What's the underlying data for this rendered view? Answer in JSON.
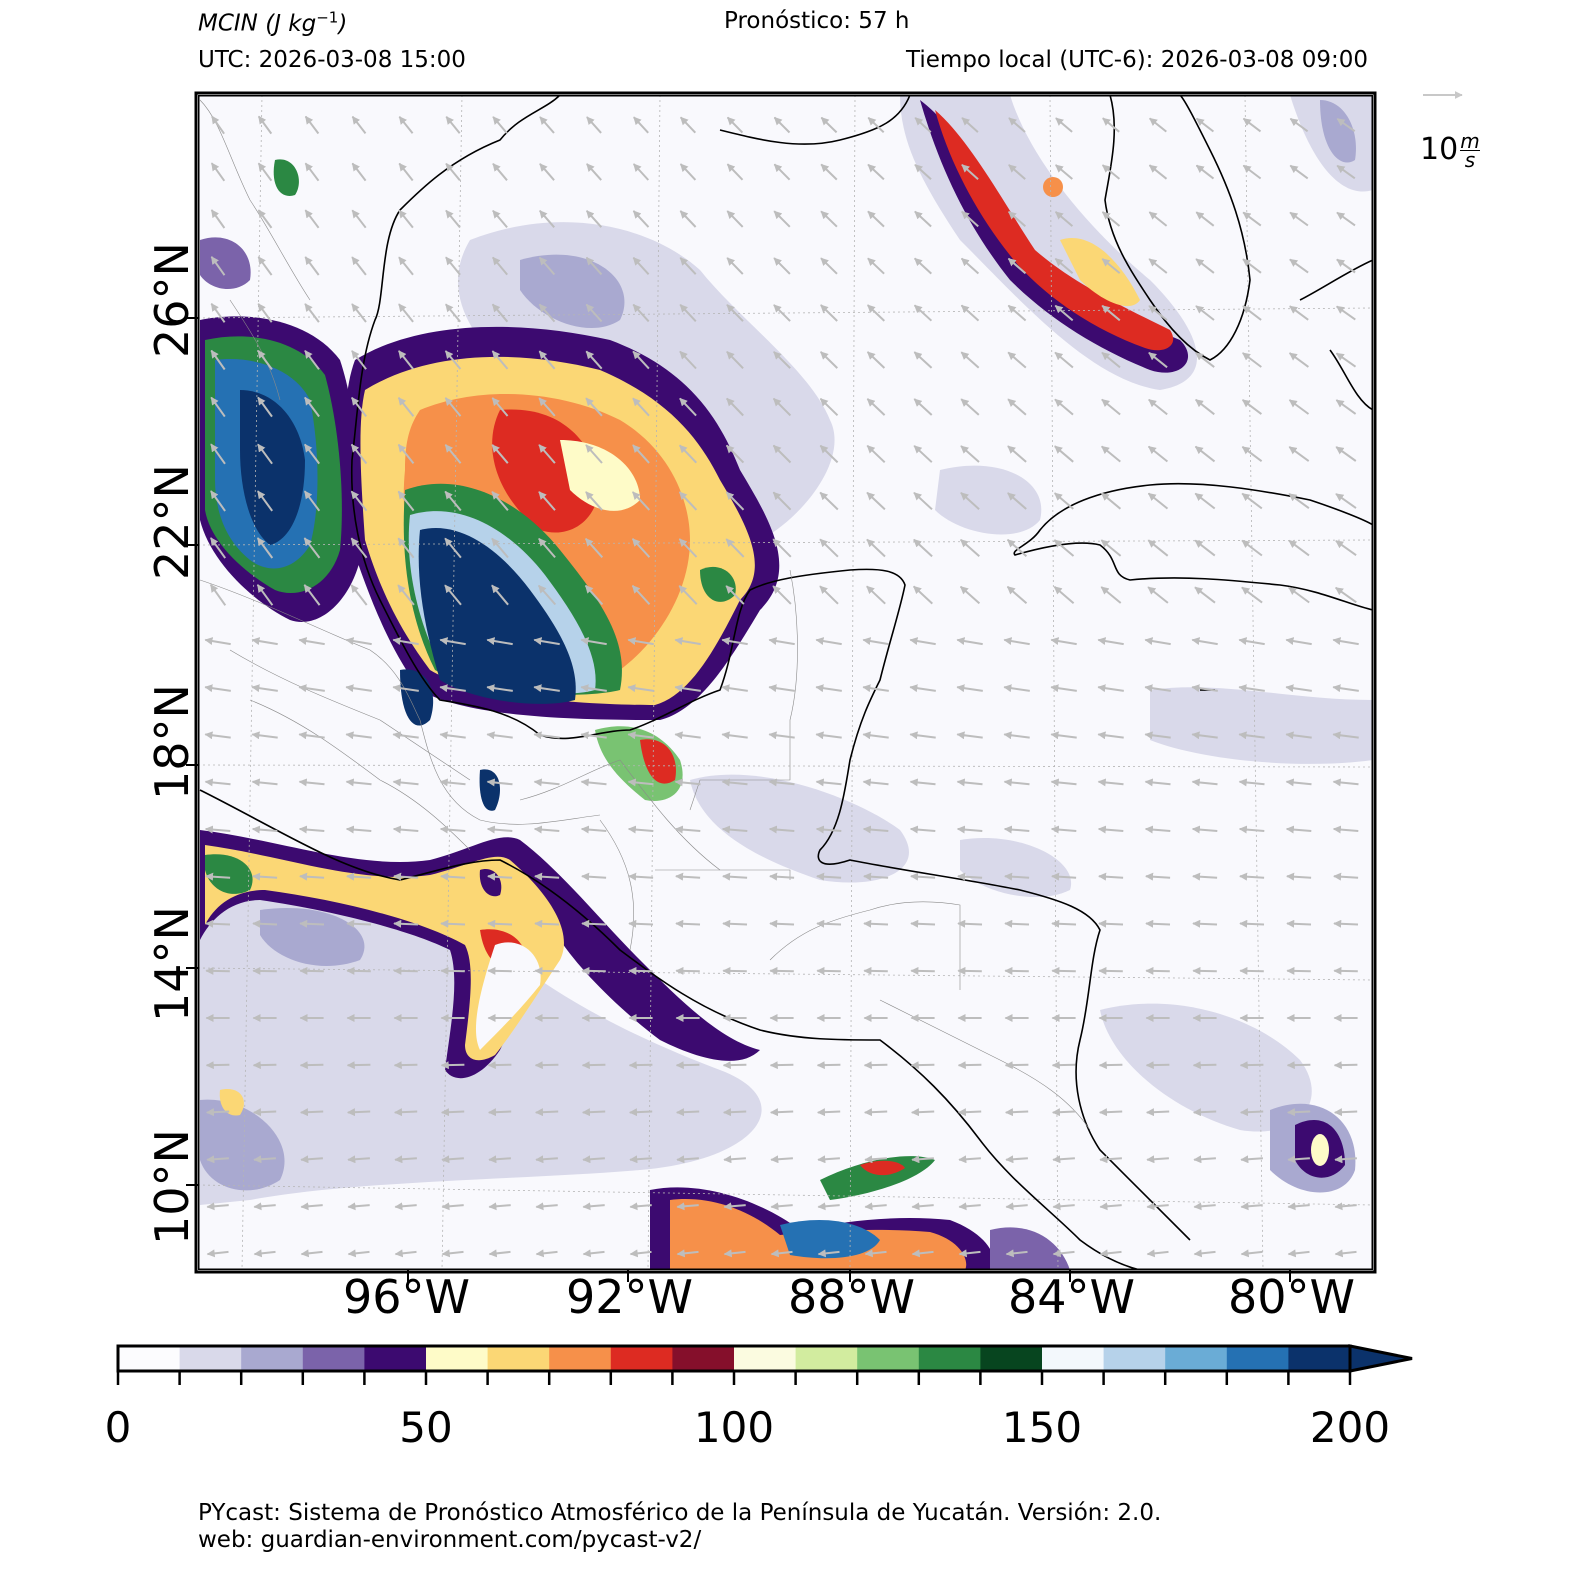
{
  "header": {
    "variable": "MCIN",
    "unit_base": "J kg",
    "unit_exp": "−1",
    "forecast": "Pronóstico: 57 h",
    "utc": "UTC:  2026-03-08 15:00",
    "local_time": "Tiempo local (UTC-6): 2026-03-08 09:00"
  },
  "reference_vector": {
    "value": "10",
    "unit_num": "m",
    "unit_den": "s"
  },
  "map": {
    "region": "Gulf of Mexico, Yucatán Peninsula and Central America",
    "lat_labels": [
      "26°N",
      "22°N",
      "18°N",
      "14°N",
      "10°N"
    ],
    "lon_labels": [
      "96°W",
      "92°W",
      "88°W",
      "84°W",
      "80°W"
    ],
    "wind_field": "northeasterly to easterly flow, vectors shown in light grey"
  },
  "colorbar": {
    "min": 0,
    "max": 200,
    "step": 10,
    "extend": "max",
    "tick_labels": [
      "0",
      "50",
      "100",
      "150",
      "200"
    ],
    "colors": [
      "#fcfcfe",
      "#d9d9ea",
      "#a9a9d0",
      "#7b63aa",
      "#3c0a70",
      "#fefbc8",
      "#fbd775",
      "#f6904a",
      "#dd2b22",
      "#850f2b",
      "#fbfbe0",
      "#d2ec9f",
      "#79c372",
      "#2b8843",
      "#07451f",
      "#f3f8fc",
      "#b6d2ea",
      "#6aacd6",
      "#2571b3",
      "#0b326b"
    ]
  },
  "footer": {
    "line1": "PYcast: Sistema de Pronóstico Atmosférico de la Península de Yucatán. Versión: 2.0.",
    "line2": "web: guardian-environment.com/pycast-v2/"
  }
}
